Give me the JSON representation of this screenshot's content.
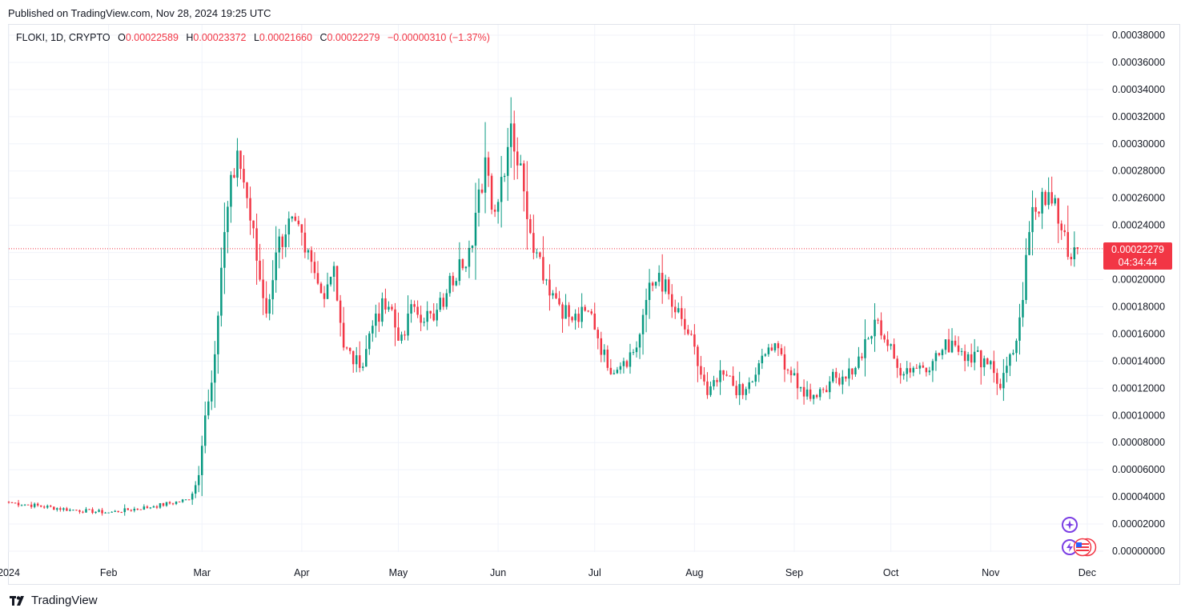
{
  "header": {
    "published_text": "Published on TradingView.com, Nov 28, 2024 19:25 UTC"
  },
  "legend": {
    "symbol": "FLOKI, 1D, CRYPTO",
    "open_label": "O",
    "open": "0.00022589",
    "high_label": "H",
    "high": "0.00023372",
    "low_label": "L",
    "low": "0.00021660",
    "close_label": "C",
    "close": "0.00022279",
    "change": "−0.00000310 (−1.37%)"
  },
  "price_tag": {
    "price": "0.00022279",
    "countdown": "04:34:44"
  },
  "footer": {
    "brand": "TradingView"
  },
  "colors": {
    "up": "#089981",
    "down": "#f23645",
    "grid": "#f0f3fa",
    "text": "#131722"
  },
  "icons": [
    "tradingview-logo-icon",
    "sparkle-icon",
    "flag-icon"
  ],
  "chart_data": {
    "type": "candlestick",
    "symbol": "FLOKI",
    "interval": "1D",
    "y_ticks": [
      "0.00038000",
      "0.00036000",
      "0.00034000",
      "0.00032000",
      "0.00030000",
      "0.00028000",
      "0.00026000",
      "0.00024000",
      "0.00022000",
      "0.00020000",
      "0.00018000",
      "0.00016000",
      "0.00014000",
      "0.00012000",
      "0.00010000",
      "0.00008000",
      "0.00006000",
      "0.00004000",
      "0.00002000",
      "0.00000000"
    ],
    "ylim": [
      0,
      0.00038
    ],
    "x_labels": [
      {
        "label": "2024",
        "date": "2024-01-01"
      },
      {
        "label": "Feb",
        "date": "2024-02-01"
      },
      {
        "label": "Mar",
        "date": "2024-03-01"
      },
      {
        "label": "Apr",
        "date": "2024-04-01"
      },
      {
        "label": "May",
        "date": "2024-05-01"
      },
      {
        "label": "Jun",
        "date": "2024-06-01"
      },
      {
        "label": "Jul",
        "date": "2024-07-01"
      },
      {
        "label": "Aug",
        "date": "2024-08-01"
      },
      {
        "label": "Sep",
        "date": "2024-09-01"
      },
      {
        "label": "Oct",
        "date": "2024-10-01"
      },
      {
        "label": "Nov",
        "date": "2024-11-01"
      },
      {
        "label": "Dec",
        "date": "2024-12-01"
      }
    ],
    "x_range": [
      "2024-01-01",
      "2024-12-06"
    ],
    "last_close": 0.00022279,
    "price_line": "dotted",
    "grid": true,
    "key_points": [
      {
        "date": "2024-01-01",
        "close": 3.6e-05
      },
      {
        "date": "2024-01-20",
        "close": 3.05e-05
      },
      {
        "date": "2024-02-01",
        "close": 2.85e-05
      },
      {
        "date": "2024-02-15",
        "close": 3.3e-05
      },
      {
        "date": "2024-02-26",
        "close": 3.8e-05
      },
      {
        "date": "2024-02-29",
        "close": 5.6e-05
      },
      {
        "date": "2024-03-02",
        "close": 0.0001
      },
      {
        "date": "2024-03-05",
        "close": 0.000145
      },
      {
        "date": "2024-03-08",
        "close": 0.000235
      },
      {
        "date": "2024-03-12",
        "close": 0.000295
      },
      {
        "date": "2024-03-15",
        "close": 0.00026
      },
      {
        "date": "2024-03-19",
        "close": 0.0002
      },
      {
        "date": "2024-03-21",
        "close": 0.000175
      },
      {
        "date": "2024-03-24",
        "close": 0.00022
      },
      {
        "date": "2024-03-28",
        "close": 0.000245
      },
      {
        "date": "2024-04-02",
        "close": 0.00022
      },
      {
        "date": "2024-04-07",
        "close": 0.00019
      },
      {
        "date": "2024-04-11",
        "close": 0.00021
      },
      {
        "date": "2024-04-14",
        "close": 0.00015
      },
      {
        "date": "2024-04-19",
        "close": 0.000135
      },
      {
        "date": "2024-04-24",
        "close": 0.000175
      },
      {
        "date": "2024-04-28",
        "close": 0.00018
      },
      {
        "date": "2024-05-01",
        "close": 0.000155
      },
      {
        "date": "2024-05-06",
        "close": 0.00018
      },
      {
        "date": "2024-05-12",
        "close": 0.00017
      },
      {
        "date": "2024-05-16",
        "close": 0.00019
      },
      {
        "date": "2024-05-20",
        "close": 0.000215
      },
      {
        "date": "2024-05-24",
        "close": 0.000225
      },
      {
        "date": "2024-05-28",
        "close": 0.00029
      },
      {
        "date": "2024-05-31",
        "close": 0.00025
      },
      {
        "date": "2024-06-05",
        "close": 0.000315
      },
      {
        "date": "2024-06-09",
        "close": 0.000265
      },
      {
        "date": "2024-06-13",
        "close": 0.00022
      },
      {
        "date": "2024-06-18",
        "close": 0.00019
      },
      {
        "date": "2024-06-24",
        "close": 0.00017
      },
      {
        "date": "2024-06-30",
        "close": 0.000175
      },
      {
        "date": "2024-07-05",
        "close": 0.000135
      },
      {
        "date": "2024-07-10",
        "close": 0.00014
      },
      {
        "date": "2024-07-14",
        "close": 0.00015
      },
      {
        "date": "2024-07-17",
        "close": 0.000185
      },
      {
        "date": "2024-07-21",
        "close": 0.000205
      },
      {
        "date": "2024-07-25",
        "close": 0.00018
      },
      {
        "date": "2024-07-30",
        "close": 0.00016
      },
      {
        "date": "2024-08-05",
        "close": 0.000115
      },
      {
        "date": "2024-08-10",
        "close": 0.00013
      },
      {
        "date": "2024-08-16",
        "close": 0.000115
      },
      {
        "date": "2024-08-20",
        "close": 0.00013
      },
      {
        "date": "2024-08-24",
        "close": 0.00015
      },
      {
        "date": "2024-08-28",
        "close": 0.000145
      },
      {
        "date": "2024-09-02",
        "close": 0.00012
      },
      {
        "date": "2024-09-07",
        "close": 0.000115
      },
      {
        "date": "2024-09-12",
        "close": 0.000125
      },
      {
        "date": "2024-09-20",
        "close": 0.000135
      },
      {
        "date": "2024-09-27",
        "close": 0.00017
      },
      {
        "date": "2024-10-03",
        "close": 0.000135
      },
      {
        "date": "2024-10-08",
        "close": 0.000135
      },
      {
        "date": "2024-10-14",
        "close": 0.00014
      },
      {
        "date": "2024-10-20",
        "close": 0.000155
      },
      {
        "date": "2024-10-25",
        "close": 0.000145
      },
      {
        "date": "2024-11-01",
        "close": 0.00014
      },
      {
        "date": "2024-11-04",
        "close": 0.00012
      },
      {
        "date": "2024-11-07",
        "close": 0.000145
      },
      {
        "date": "2024-11-09",
        "close": 0.000155
      },
      {
        "date": "2024-11-11",
        "close": 0.000185
      },
      {
        "date": "2024-11-13",
        "close": 0.000235
      },
      {
        "date": "2024-11-15",
        "close": 0.00025
      },
      {
        "date": "2024-11-18",
        "close": 0.000255
      },
      {
        "date": "2024-11-21",
        "close": 0.00026
      },
      {
        "date": "2024-11-24",
        "close": 0.000235
      },
      {
        "date": "2024-11-26",
        "close": 0.000215
      },
      {
        "date": "2024-11-28",
        "close": 0.00022279
      }
    ]
  }
}
